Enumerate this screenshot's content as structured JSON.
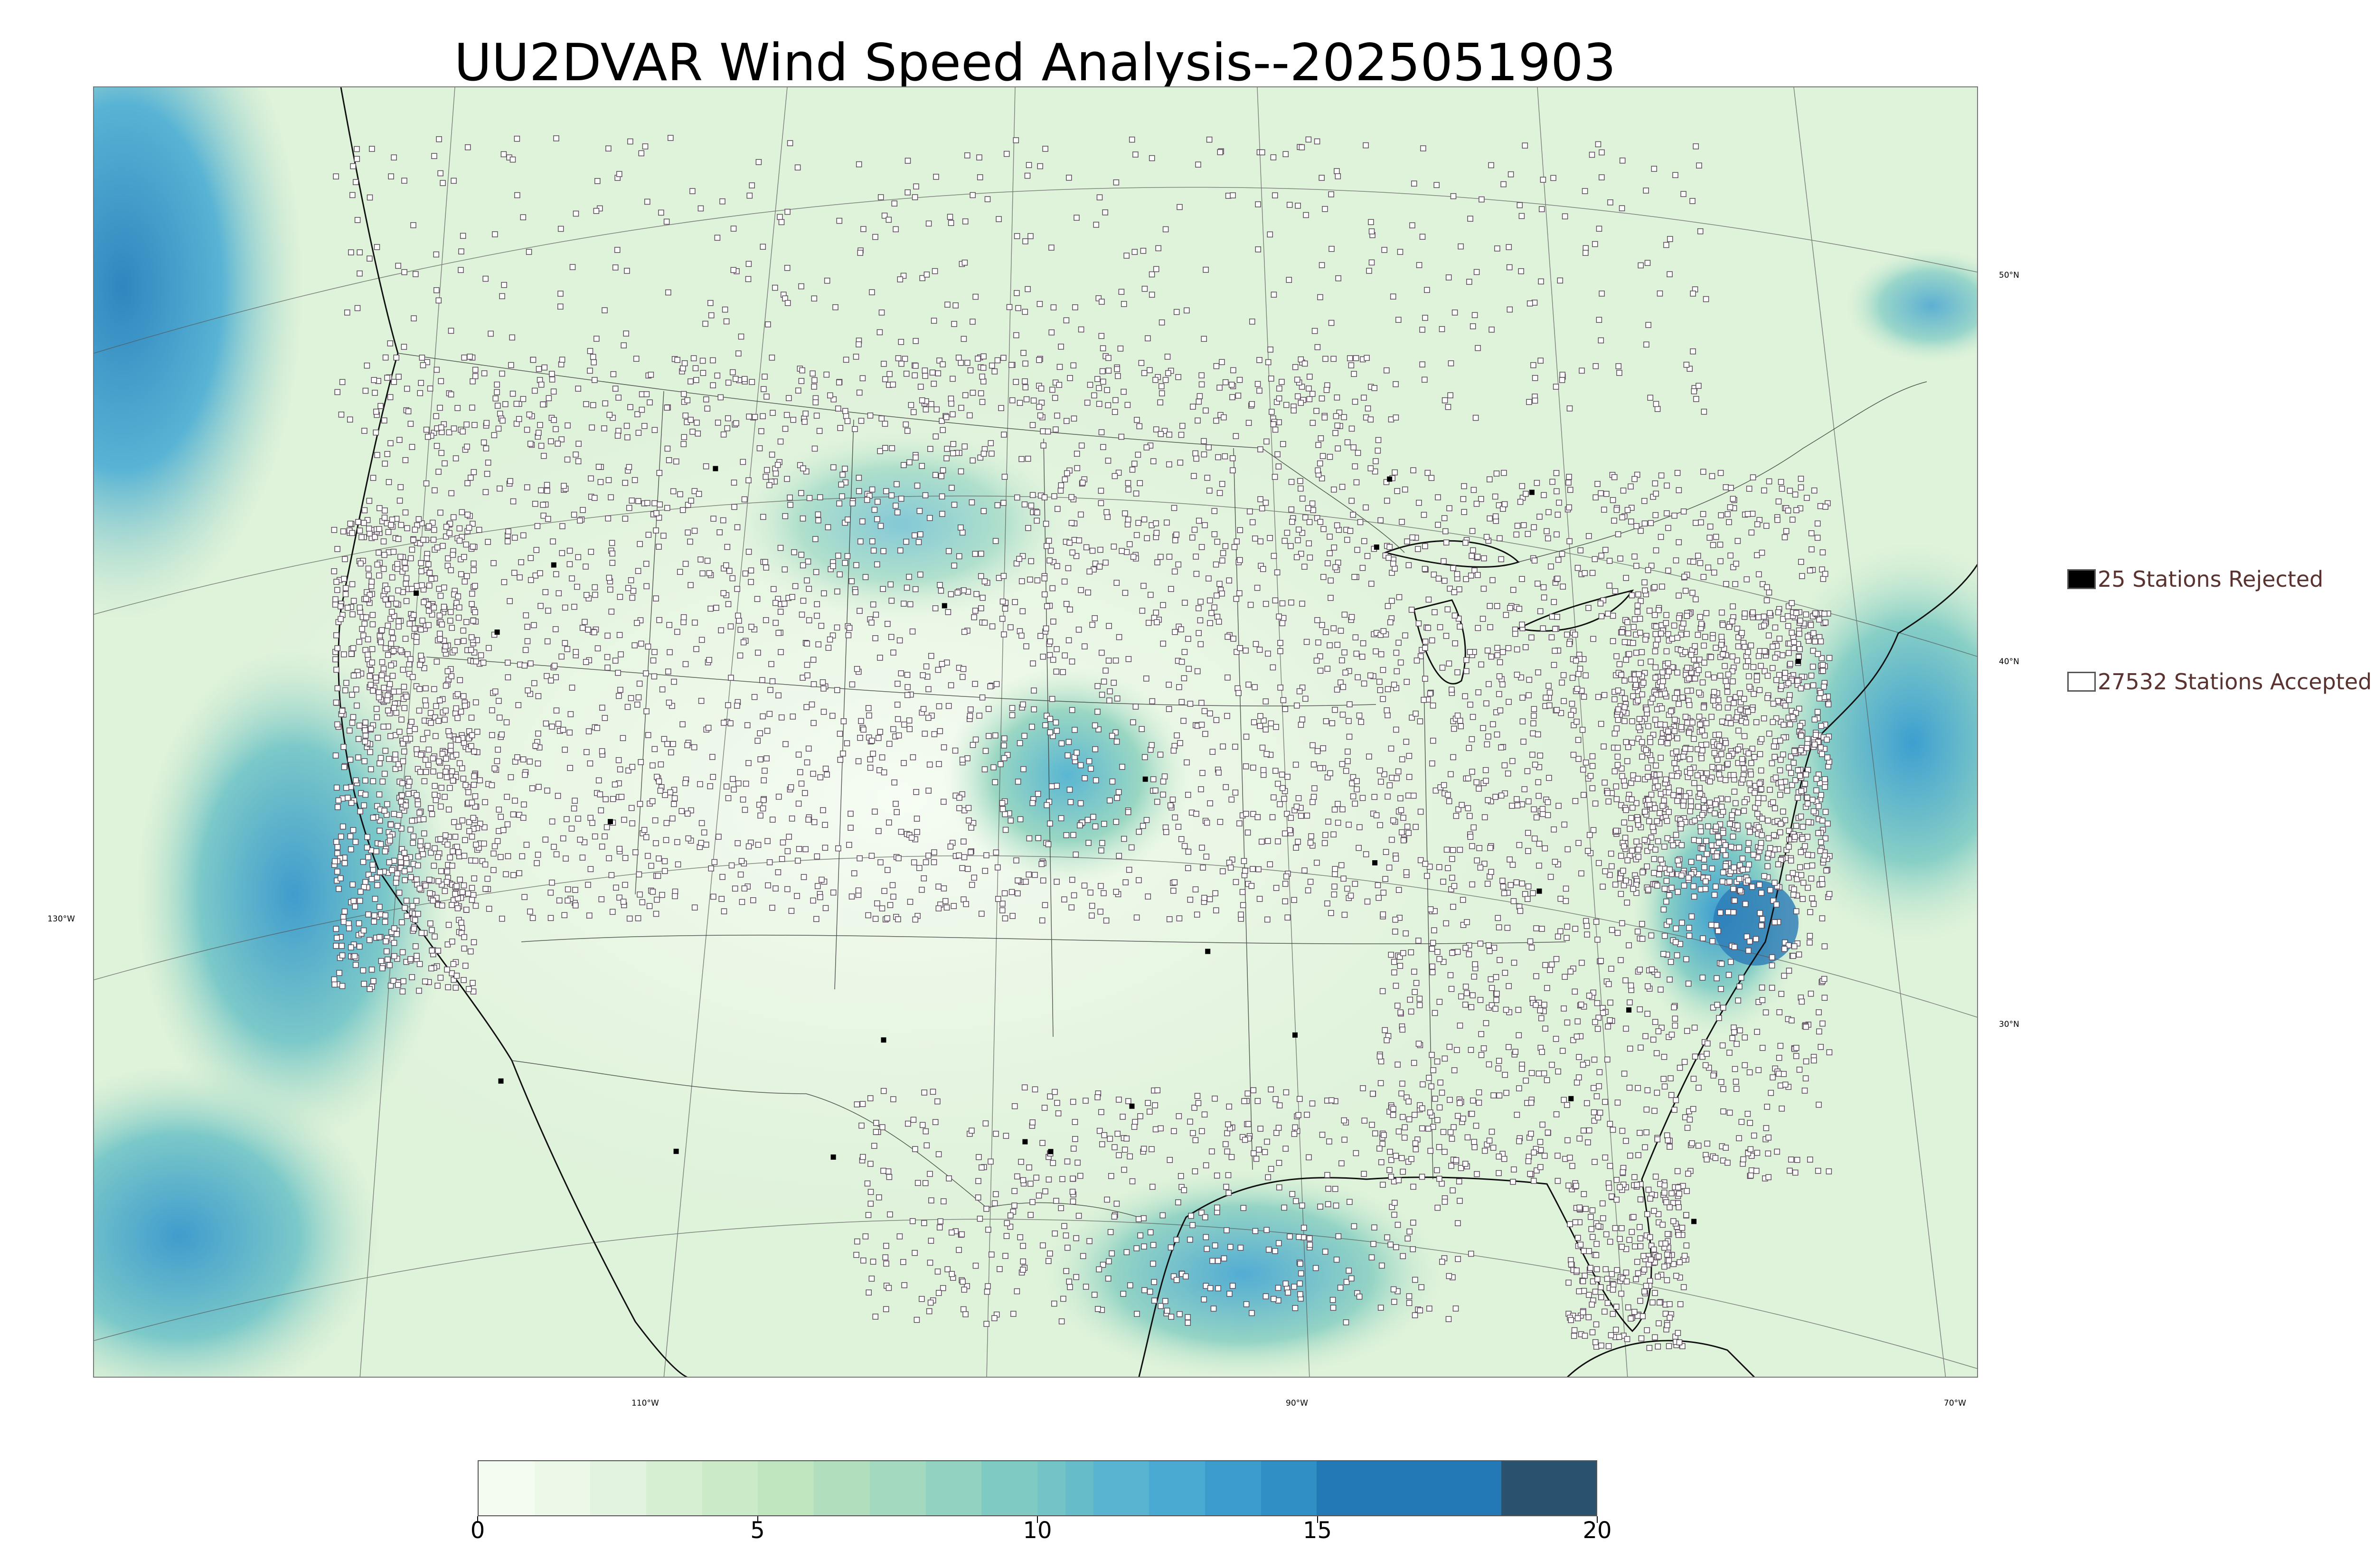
{
  "title": "UU2DVAR Wind Speed Analysis--2025051903",
  "map": {
    "projection": "lambert-conformal",
    "fill_variable": "wind speed",
    "lat_labels": [
      "50°N",
      "40°N",
      "30°N"
    ],
    "lon_labels": [
      "130°W",
      "110°W",
      "90°W",
      "70°W"
    ],
    "background_colors": {
      "low": "#f2faee",
      "mid": "#b6e0c0",
      "high": "#4aa8d4",
      "max": "#2678b4"
    }
  },
  "legend": {
    "rejected": {
      "count": 25,
      "label": "25 Stations Rejected",
      "marker": "black-square"
    },
    "accepted": {
      "count": 27532,
      "label": "27532 Stations Accepted",
      "marker": "hollow-square"
    }
  },
  "colorbar": {
    "min": 0,
    "max": 20,
    "ticks": [
      "0",
      "5",
      "10",
      "15",
      "20"
    ],
    "segments": [
      {
        "from": 0,
        "to": 1,
        "color": "#f4fbf1"
      },
      {
        "from": 1,
        "to": 2,
        "color": "#ecf8e8"
      },
      {
        "from": 2,
        "to": 3,
        "color": "#e2f4df"
      },
      {
        "from": 3,
        "to": 4,
        "color": "#d6efd2"
      },
      {
        "from": 4,
        "to": 5,
        "color": "#cbeac8"
      },
      {
        "from": 5,
        "to": 6,
        "color": "#bfe5bf"
      },
      {
        "from": 6,
        "to": 7,
        "color": "#b1dfbd"
      },
      {
        "from": 7,
        "to": 8,
        "color": "#a3d9bf"
      },
      {
        "from": 8,
        "to": 9,
        "color": "#92d2c1"
      },
      {
        "from": 9,
        "to": 10,
        "color": "#7fcac3"
      },
      {
        "from": 10,
        "to": 10.5,
        "color": "#72c4c6"
      },
      {
        "from": 10.5,
        "to": 11,
        "color": "#66bdc9"
      },
      {
        "from": 11,
        "to": 12,
        "color": "#58b4d0"
      },
      {
        "from": 12,
        "to": 13,
        "color": "#4aaad2"
      },
      {
        "from": 13,
        "to": 14,
        "color": "#3c9ccb"
      },
      {
        "from": 14,
        "to": 15,
        "color": "#308fc4"
      },
      {
        "from": 15,
        "to": 18.3,
        "color": "#2279b6"
      },
      {
        "from": 18.3,
        "to": 20,
        "color": "#29526f"
      }
    ]
  }
}
